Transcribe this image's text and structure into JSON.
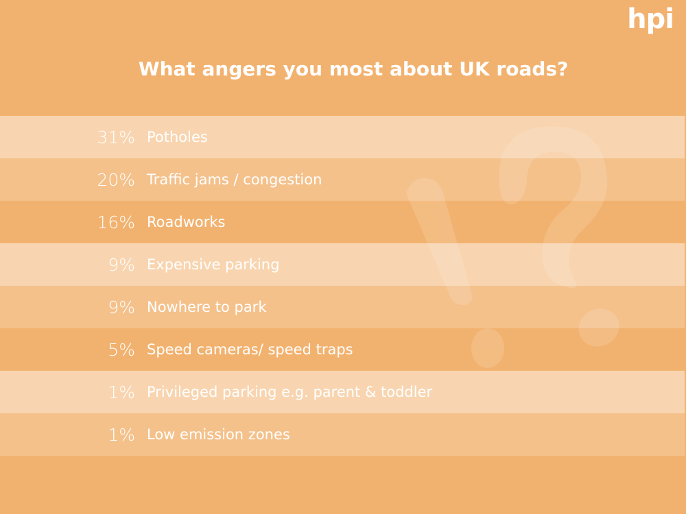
{
  "brand": {
    "logo_text": "hpi"
  },
  "chart_data": {
    "type": "table",
    "title": "What angers you most about UK roads?",
    "categories": [
      "Potholes",
      "Traffic jams / congestion",
      "Roadworks",
      "Expensive parking",
      "Nowhere to park",
      "Speed cameras/ speed traps",
      "Privileged parking e.g. parent & toddler",
      "Low emission zones"
    ],
    "values": [
      31,
      20,
      16,
      9,
      9,
      5,
      1,
      1
    ],
    "value_labels": [
      "31%",
      "20%",
      "16%",
      "9%",
      "9%",
      "5%",
      "1%",
      "1%"
    ],
    "unit": "%"
  },
  "colors": {
    "background": "#f2b26f",
    "text": "#ffffff",
    "row_light": "#f8d1a9",
    "row_mid": "#f6c18b"
  },
  "decoration": {
    "icon": "exclamation-question-icon"
  }
}
